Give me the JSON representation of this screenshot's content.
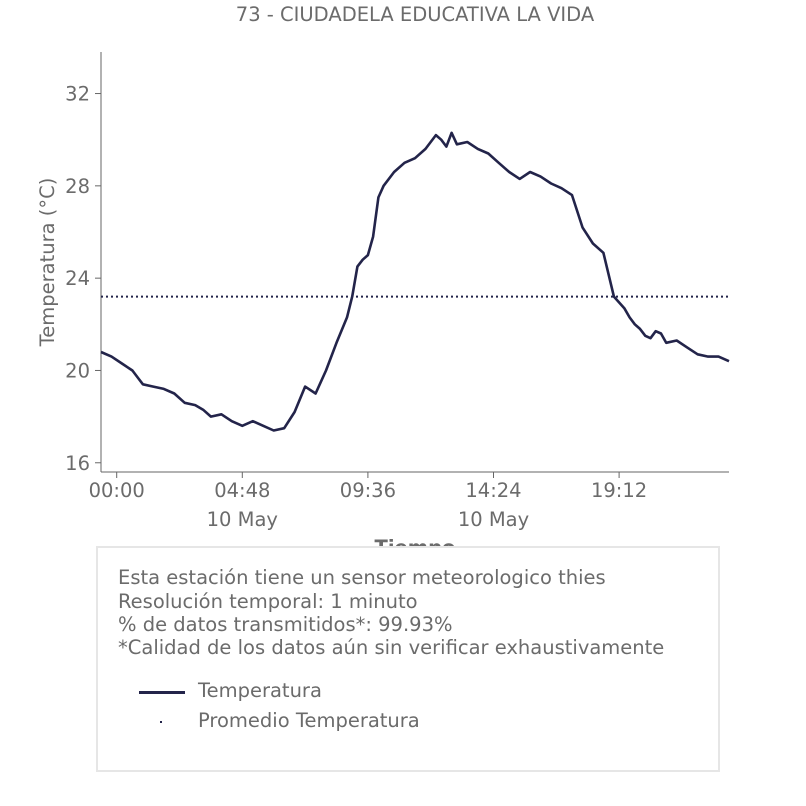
{
  "chart_data": {
    "type": "line",
    "title": "73 - CIUDADELA EDUCATIVA LA VIDA",
    "xlabel": "Tiempo",
    "ylabel": "Temperatura (°C)",
    "ylim": [
      15.6,
      33.8
    ],
    "yticks": [
      16,
      20,
      24,
      28,
      32
    ],
    "xlim": [
      -0.6,
      23.4
    ],
    "xticks": [
      {
        "x": 0.0,
        "label": "00:00",
        "date": ""
      },
      {
        "x": 4.8,
        "label": "04:48",
        "date": "10 May"
      },
      {
        "x": 9.6,
        "label": "09:36",
        "date": ""
      },
      {
        "x": 14.4,
        "label": "14:24",
        "date": "10 May"
      },
      {
        "x": 19.2,
        "label": "19:12",
        "date": ""
      }
    ],
    "series": [
      {
        "name": "Temperatura",
        "color": "#23244a",
        "x": [
          -0.6,
          -0.2,
          0.2,
          0.6,
          0.8,
          1.0,
          1.4,
          1.8,
          2.2,
          2.6,
          3.0,
          3.3,
          3.6,
          4.0,
          4.4,
          4.8,
          5.2,
          5.6,
          6.0,
          6.4,
          6.8,
          7.2,
          7.6,
          8.0,
          8.4,
          8.8,
          9.0,
          9.2,
          9.4,
          9.6,
          9.8,
          10.0,
          10.2,
          10.6,
          11.0,
          11.4,
          11.8,
          12.0,
          12.2,
          12.4,
          12.6,
          12.8,
          13.0,
          13.4,
          13.8,
          14.2,
          14.6,
          15.0,
          15.4,
          15.8,
          16.2,
          16.6,
          17.0,
          17.4,
          17.8,
          18.2,
          18.6,
          19.0,
          19.4,
          19.6,
          19.8,
          20.0,
          20.2,
          20.4,
          20.6,
          20.8,
          21.0,
          21.4,
          21.8,
          22.2,
          22.6,
          23.0,
          23.4
        ],
        "y": [
          20.8,
          20.6,
          20.3,
          20.0,
          19.7,
          19.4,
          19.3,
          19.2,
          19.0,
          18.6,
          18.5,
          18.3,
          18.0,
          18.1,
          17.8,
          17.6,
          17.8,
          17.6,
          17.4,
          17.5,
          18.2,
          19.3,
          19.0,
          20.0,
          21.2,
          22.3,
          23.2,
          24.5,
          24.8,
          25.0,
          25.8,
          27.5,
          28.0,
          28.6,
          29.0,
          29.2,
          29.6,
          29.9,
          30.2,
          30.0,
          29.7,
          30.3,
          29.8,
          29.9,
          29.6,
          29.4,
          29.0,
          28.6,
          28.3,
          28.6,
          28.4,
          28.1,
          27.9,
          27.6,
          26.2,
          25.5,
          25.1,
          23.2,
          22.7,
          22.3,
          22.0,
          21.8,
          21.5,
          21.4,
          21.7,
          21.6,
          21.2,
          21.3,
          21.0,
          20.7,
          20.6,
          20.6,
          20.4
        ]
      },
      {
        "name": "Promedio Temperatura",
        "color": "#23244a",
        "style": "dotted",
        "x": [
          -0.6,
          23.4
        ],
        "y": [
          23.2,
          23.2
        ]
      }
    ],
    "grid": false,
    "legend": "bottom-left"
  },
  "info": {
    "lines": [
      "Esta estación tiene un sensor meteorologico thies",
      "Resolución temporal: 1 minuto",
      "% de datos transmitidos*: 99.93%",
      "*Calidad de los datos aún sin verificar exhaustivamente"
    ],
    "legend": [
      {
        "label": "Temperatura"
      },
      {
        "label": "Promedio Temperatura"
      }
    ]
  }
}
